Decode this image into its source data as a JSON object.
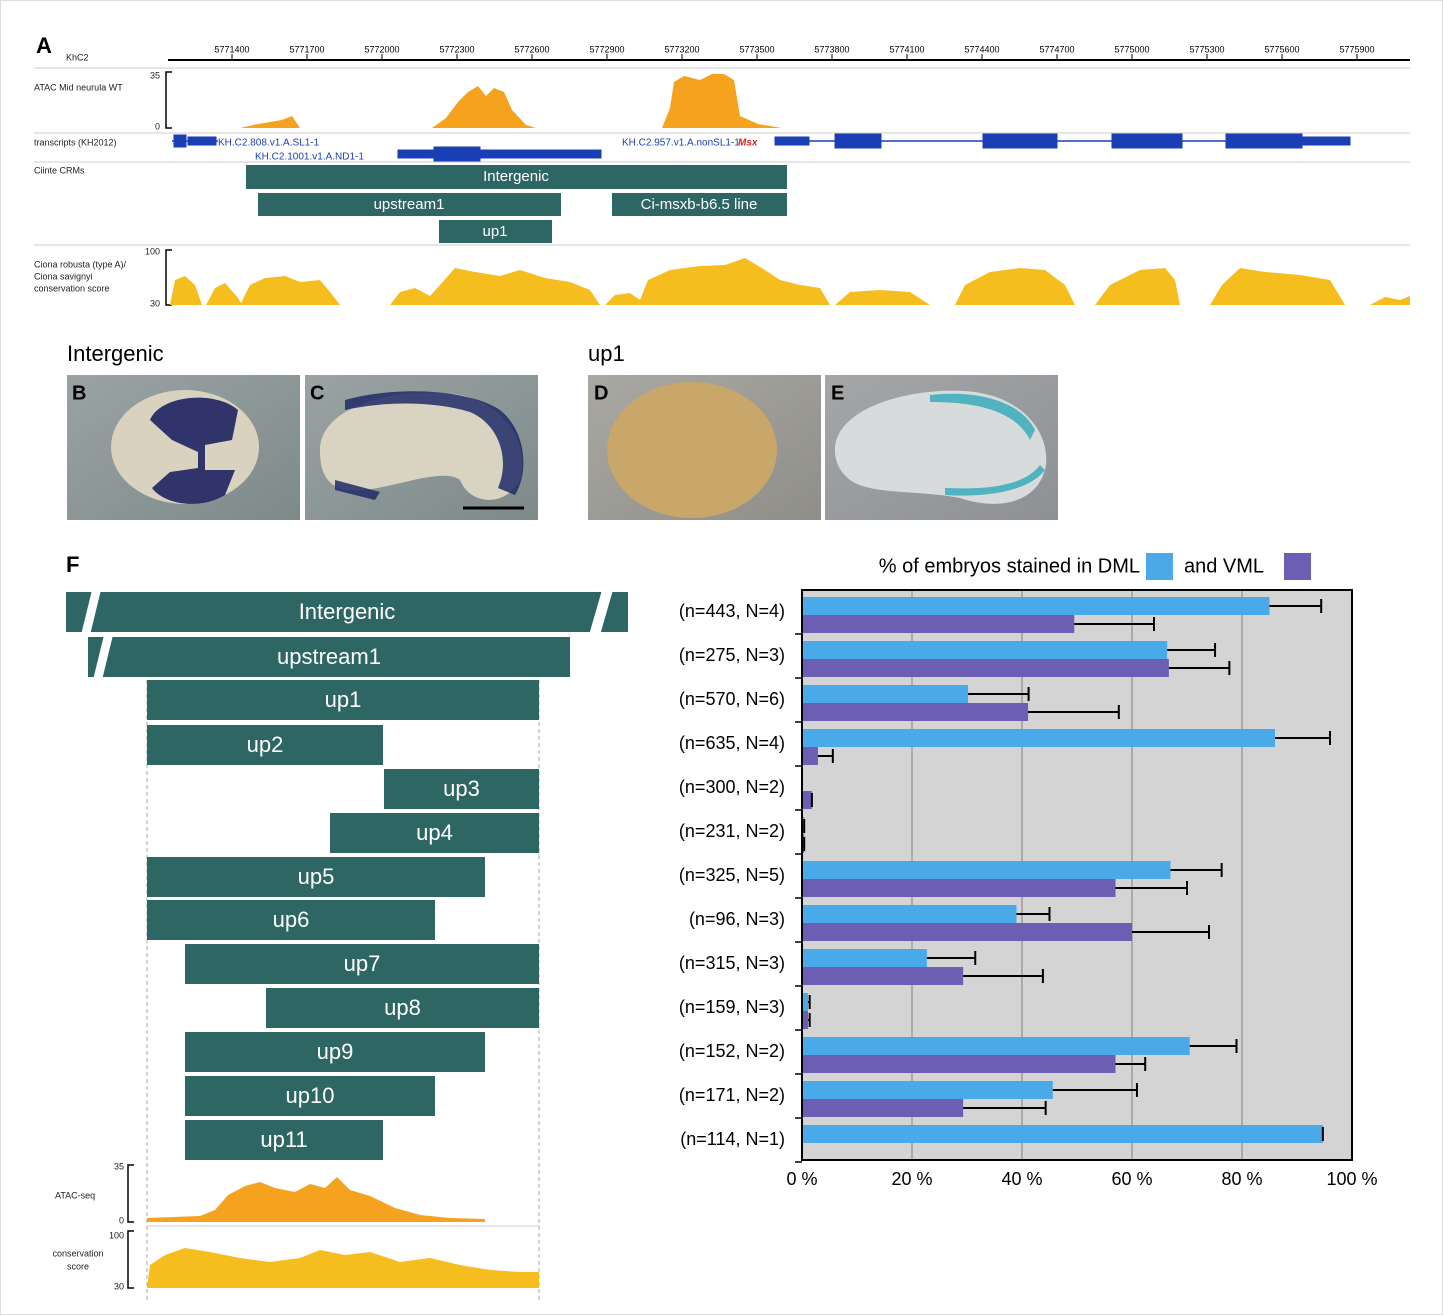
{
  "genome_browser": {
    "label": "A",
    "chromosome": "KhC2",
    "xlim": [
      5771160,
      5776112
    ],
    "xticks": [
      5771400,
      5771700,
      5772000,
      5772300,
      5772600,
      5772900,
      5773200,
      5773500,
      5773800,
      5774100,
      5774400,
      5774700,
      5775000,
      5775300,
      5775600,
      5775900
    ],
    "atac_track": {
      "name": "ATAC Mid neurula WT",
      "ymax": 35,
      "ymin": 0
    },
    "transcripts_track": {
      "name": "transcripts (KH2012)",
      "labels": [
        "KH.C2.808.v1.A.SL1-1",
        "KH.C2.1001.v1.A.ND1-1",
        "KH.C2.957.v1.A.nonSL1-1"
      ],
      "gene": "Msx"
    },
    "crm_track": {
      "name": "Ciinte CRMs",
      "crms": [
        "Intergenic",
        "upstream1",
        "Ci-msxb-b6.5 line",
        "up1"
      ]
    },
    "conservation_track": {
      "name_lines": [
        "Ciona robusta (type A)/",
        "Ciona savignyi",
        "conservation score"
      ],
      "ymax": 100,
      "ymin": 30
    }
  },
  "images": {
    "groups": [
      {
        "title": "Intergenic",
        "panels": [
          "B",
          "C"
        ]
      },
      {
        "title": "up1",
        "panels": [
          "D",
          "E"
        ]
      }
    ]
  },
  "panel_f": {
    "label": "F",
    "constructs": [
      "Intergenic",
      "upstream1",
      "up1",
      "up2",
      "up3",
      "up4",
      "up5",
      "up6",
      "up7",
      "up8",
      "up9",
      "up10",
      "up11"
    ],
    "atac_track": {
      "name": "ATAC-seq",
      "ymax": 35,
      "ymin": 0
    },
    "conservation_track": {
      "name_lines": [
        "conservation",
        "score"
      ],
      "ymax": 100,
      "ymin": 30
    }
  },
  "chart_data": {
    "type": "bar",
    "orientation": "horizontal",
    "categories": [
      "(n=443, N=4)",
      "(n=275, N=3)",
      "(n=570, N=6)",
      "(n=635, N=4)",
      "(n=300, N=2)",
      "(n=231, N=2)",
      "(n=325, N=5)",
      "(n=96, N=3)",
      "(n=315, N=3)",
      "(n=159, N=3)",
      "(n=152, N=2)",
      "(n=171, N=2)",
      "(n=114, N=1)"
    ],
    "series": [
      {
        "name": "% of embryos stained in DML",
        "color": "#4aa9e9",
        "values": [
          85,
          66.4,
          30.2,
          86,
          0,
          0.4,
          67,
          39,
          22.7,
          1.1,
          70.5,
          45.6,
          94.7
        ],
        "errors": [
          9.4,
          8.7,
          11,
          10,
          0,
          0,
          9.3,
          6,
          8.8,
          0.3,
          8.5,
          15.3,
          0
        ]
      },
      {
        "name": "and VML",
        "color": "#6c5fb3",
        "values": [
          49.5,
          66.7,
          41.1,
          2.9,
          1.8,
          0.4,
          57,
          60,
          29.3,
          1.1,
          57,
          29.3,
          0
        ],
        "errors": [
          14.5,
          11,
          16.5,
          2.7,
          0,
          0,
          13,
          14,
          14.5,
          0.3,
          5.4,
          15,
          0
        ]
      }
    ],
    "xlim": [
      0,
      100
    ],
    "xticks": [
      {
        "value": 0,
        "label": "0 %"
      },
      {
        "value": 20,
        "label": "20 %"
      },
      {
        "value": 40,
        "label": "40 %"
      },
      {
        "value": 60,
        "label": "60 %"
      },
      {
        "value": 80,
        "label": "80 %"
      },
      {
        "value": 100,
        "label": "100 %"
      }
    ],
    "grid": true
  }
}
